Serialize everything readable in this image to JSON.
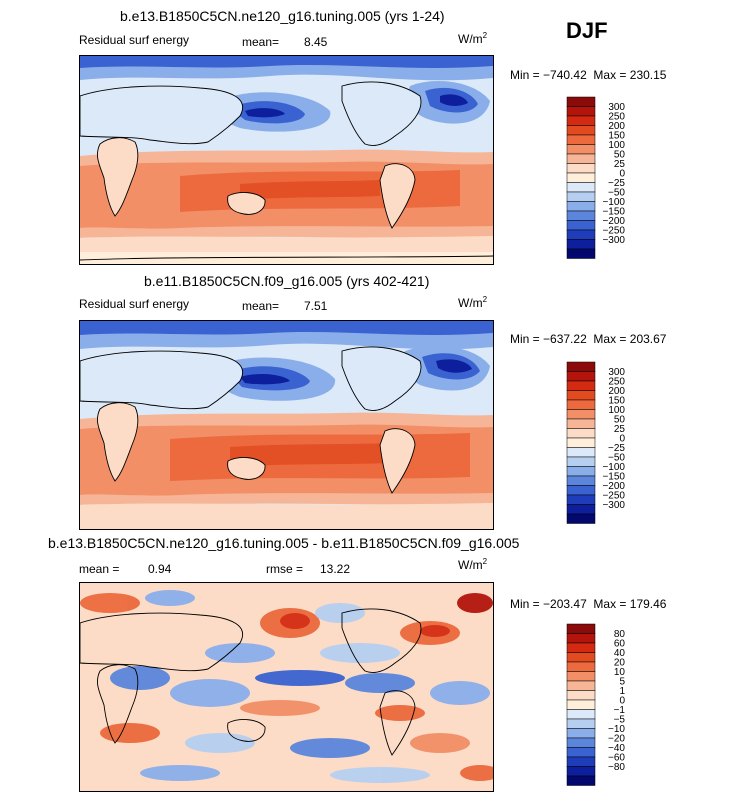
{
  "season": "DJF",
  "units_base": "W/m",
  "units_exp": "2",
  "panels": [
    {
      "title": "b.e13.B1850C5CN.ne120_g16.tuning.005 (yrs 1-24)",
      "field": "Residual surf energy",
      "mean_label": "mean=",
      "mean_value": "8.45",
      "min_label": "Min =",
      "min_value": "−740.42",
      "max_label": "Max =",
      "max_value": "230.15"
    },
    {
      "title": "b.e11.B1850C5CN.f09_g16.005 (yrs 402-421)",
      "field": "Residual surf energy",
      "mean_label": "mean=",
      "mean_value": "7.51",
      "min_label": "Min =",
      "min_value": "−637.22",
      "max_label": "Max =",
      "max_value": "203.67"
    },
    {
      "title": "b.e13.B1850C5CN.ne120_g16.tuning.005 - b.e11.B1850C5CN.f09_g16.005",
      "mean_label": "mean =",
      "mean_value": "0.94",
      "rmse_label": "rmse =",
      "rmse_value": "13.22",
      "min_label": "Min =",
      "min_value": "−203.47",
      "max_label": "Max =",
      "max_value": "179.46"
    }
  ],
  "colorbars": {
    "absolute": {
      "levels": [
        "300",
        "250",
        "200",
        "150",
        "100",
        "50",
        "25",
        "0",
        "−25",
        "−50",
        "−100",
        "−150",
        "−200",
        "−250",
        "−300"
      ],
      "colors": [
        "#8b0a0a",
        "#b3150d",
        "#d42a12",
        "#e24a1f",
        "#ec6a3e",
        "#f28f67",
        "#f6b596",
        "#fcdcc6",
        "#ffeed9",
        "#dbe9f8",
        "#b6cff1",
        "#8aaeea",
        "#5b86dc",
        "#3a62d0",
        "#1f3dbb",
        "#0d1f9c",
        "#03086e"
      ]
    },
    "difference": {
      "levels": [
        "80",
        "60",
        "40",
        "20",
        "10",
        "5",
        "1",
        "0",
        "−1",
        "−5",
        "−10",
        "−20",
        "−40",
        "−60",
        "−80"
      ],
      "colors": [
        "#8b0a0a",
        "#b3150d",
        "#d42a12",
        "#e24a1f",
        "#ec6a3e",
        "#f28f67",
        "#f6b596",
        "#fcdcc6",
        "#ffeed9",
        "#dbe9f8",
        "#b6cff1",
        "#8aaeea",
        "#5b86dc",
        "#3a62d0",
        "#1f3dbb",
        "#0d1f9c",
        "#03086e"
      ]
    }
  },
  "chart_data": [
    {
      "type": "heatmap",
      "title": "b.e13.B1850C5CN.ne120_g16.tuning.005 (yrs 1-24)",
      "variable": "Residual surf energy",
      "units": "W/m^2",
      "mean": 8.45,
      "min": -740.42,
      "max": 230.15,
      "contour_levels": [
        -300,
        -250,
        -200,
        -150,
        -100,
        -50,
        -25,
        0,
        25,
        50,
        100,
        150,
        200,
        250,
        300
      ]
    },
    {
      "type": "heatmap",
      "title": "b.e11.B1850C5CN.f09_g16.005 (yrs 402-421)",
      "variable": "Residual surf energy",
      "units": "W/m^2",
      "mean": 7.51,
      "min": -637.22,
      "max": 203.67,
      "contour_levels": [
        -300,
        -250,
        -200,
        -150,
        -100,
        -50,
        -25,
        0,
        25,
        50,
        100,
        150,
        200,
        250,
        300
      ]
    },
    {
      "type": "heatmap",
      "title": "b.e13.B1850C5CN.ne120_g16.tuning.005 - b.e11.B1850C5CN.f09_g16.005",
      "units": "W/m^2",
      "mean": 0.94,
      "rmse": 13.22,
      "min": -203.47,
      "max": 179.46,
      "contour_levels": [
        -80,
        -60,
        -40,
        -20,
        -10,
        -5,
        -1,
        0,
        1,
        5,
        10,
        20,
        40,
        60,
        80
      ]
    }
  ]
}
